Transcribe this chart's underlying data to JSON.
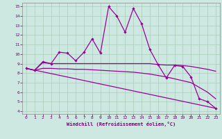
{
  "xlabel": "Windchill (Refroidissement éolien,°C)",
  "background_color": "#cce8e0",
  "grid_color": "#aaccbb",
  "line_color": "#990099",
  "xlim_min": -0.5,
  "xlim_max": 23.5,
  "ylim_min": 3.7,
  "ylim_max": 15.4,
  "xticks": [
    0,
    1,
    2,
    3,
    4,
    5,
    6,
    7,
    8,
    9,
    10,
    11,
    12,
    13,
    14,
    15,
    16,
    17,
    18,
    19,
    20,
    21,
    22,
    23
  ],
  "yticks": [
    4,
    5,
    6,
    7,
    8,
    9,
    10,
    11,
    12,
    13,
    14,
    15
  ],
  "line1_x": [
    0,
    1,
    2,
    3,
    4,
    5,
    6,
    7,
    8,
    9,
    10,
    11,
    12,
    13,
    14,
    15,
    16,
    17,
    18,
    19,
    20,
    21,
    22,
    23
  ],
  "line1_y": [
    8.5,
    8.3,
    9.2,
    9.0,
    10.2,
    10.1,
    9.3,
    10.2,
    11.6,
    10.1,
    15.0,
    14.0,
    12.3,
    14.8,
    13.2,
    10.5,
    8.9,
    7.5,
    8.8,
    8.7,
    7.6,
    5.3,
    5.0,
    4.3
  ],
  "line2_x": [
    0,
    1,
    2,
    3,
    4,
    5,
    6,
    7,
    8,
    9,
    10,
    11,
    12,
    13,
    14,
    15,
    16,
    17,
    18,
    19,
    20,
    21,
    22,
    23
  ],
  "line2_y": [
    8.5,
    8.3,
    9.1,
    9.0,
    9.0,
    9.0,
    9.0,
    9.0,
    9.0,
    9.0,
    9.0,
    9.0,
    9.0,
    9.0,
    9.0,
    9.0,
    8.9,
    8.85,
    8.85,
    8.8,
    8.7,
    8.55,
    8.4,
    8.2
  ],
  "line3_x": [
    0,
    1,
    2,
    3,
    4,
    5,
    6,
    7,
    8,
    9,
    10,
    11,
    12,
    13,
    14,
    15,
    16,
    17,
    18,
    19,
    20,
    21,
    22,
    23
  ],
  "line3_y": [
    8.5,
    8.3,
    8.5,
    8.5,
    8.45,
    8.45,
    8.4,
    8.4,
    8.35,
    8.3,
    8.25,
    8.2,
    8.15,
    8.1,
    8.0,
    7.9,
    7.75,
    7.6,
    7.4,
    7.2,
    7.0,
    6.5,
    6.0,
    5.3
  ],
  "line4_x": [
    0,
    23
  ],
  "line4_y": [
    8.5,
    4.3
  ]
}
